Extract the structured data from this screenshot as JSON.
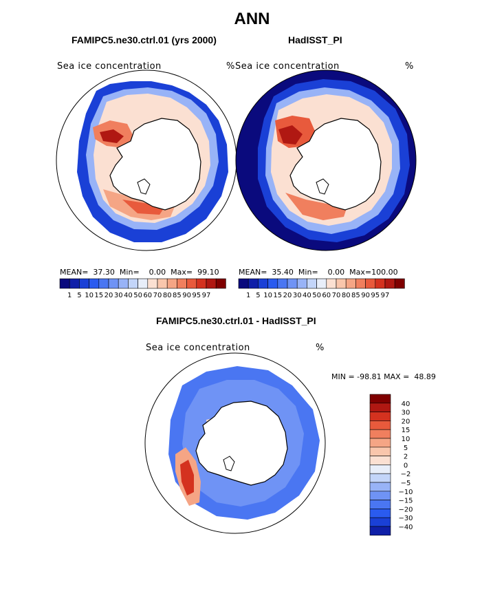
{
  "title": "ANN",
  "panels": [
    {
      "title": "FAMIPC5.ne30.ctrl.01 (yrs 2000)",
      "field": "Sea ice concentration",
      "units": "%",
      "stats": {
        "mean": "37.30",
        "min": "0.00",
        "max": "99.10"
      }
    },
    {
      "title": "HadISST_PI",
      "field": "Sea ice concentration",
      "units": "%",
      "stats": {
        "mean": "35.40",
        "min": "0.00",
        "max": "100.00"
      }
    }
  ],
  "diff": {
    "title": "FAMIPC5.ne30.ctrl.01 - HadISST_PI",
    "field": "Sea ice concentration",
    "units": "%",
    "minmax": "MIN = -98.81 MAX =  48.89"
  },
  "labels": {
    "mean": "MEAN=",
    "min": "Min=",
    "max": "Max="
  },
  "chart_data": [
    {
      "type": "heatmap",
      "title": "FAMIPC5.ne30.ctrl.01 (yrs 2000)",
      "field": "Sea ice concentration",
      "units": "%",
      "projection": "south polar stereographic",
      "stats": {
        "mean": 37.3,
        "min": 0.0,
        "max": 99.1
      },
      "levels": [
        1,
        5,
        10,
        15,
        20,
        30,
        40,
        50,
        60,
        70,
        80,
        85,
        90,
        95,
        97
      ],
      "colorbar": [
        "#0a0a7d",
        "#0f1fa8",
        "#1a40d6",
        "#2a5bef",
        "#4a76f2",
        "#6f93f5",
        "#98b3f7",
        "#c3d5f9",
        "#e8eef9",
        "#fbe0d2",
        "#f9c6ac",
        "#f5a585",
        "#f07f5e",
        "#e85a3c",
        "#d4321f",
        "#b01812",
        "#7f0000"
      ]
    },
    {
      "type": "heatmap",
      "title": "HadISST_PI",
      "field": "Sea ice concentration",
      "units": "%",
      "projection": "south polar stereographic",
      "stats": {
        "mean": 35.4,
        "min": 0.0,
        "max": 100.0
      },
      "levels": [
        1,
        5,
        10,
        15,
        20,
        30,
        40,
        50,
        60,
        70,
        80,
        85,
        90,
        95,
        97
      ],
      "colorbar": [
        "#0a0a7d",
        "#0f1fa8",
        "#1a40d6",
        "#2a5bef",
        "#4a76f2",
        "#6f93f5",
        "#98b3f7",
        "#c3d5f9",
        "#e8eef9",
        "#fbe0d2",
        "#f9c6ac",
        "#f5a585",
        "#f07f5e",
        "#e85a3c",
        "#d4321f",
        "#b01812",
        "#7f0000"
      ]
    },
    {
      "type": "heatmap",
      "title": "FAMIPC5.ne30.ctrl.01 - HadISST_PI",
      "field": "Sea ice concentration",
      "units": "%",
      "projection": "south polar stereographic",
      "min": -98.81,
      "max": 48.89,
      "levels": [
        40,
        30,
        20,
        15,
        10,
        5,
        2,
        0,
        -2,
        -5,
        -10,
        -15,
        -20,
        -30,
        -40
      ],
      "colorbar": [
        "#7f0000",
        "#b01812",
        "#d4321f",
        "#e85a3c",
        "#f07f5e",
        "#f5a585",
        "#f9c6ac",
        "#fbe0d2",
        "#e8eef9",
        "#c3d5f9",
        "#98b3f7",
        "#6f93f5",
        "#4a76f2",
        "#2a5bef",
        "#1a40d6",
        "#0f1fa8"
      ]
    }
  ]
}
